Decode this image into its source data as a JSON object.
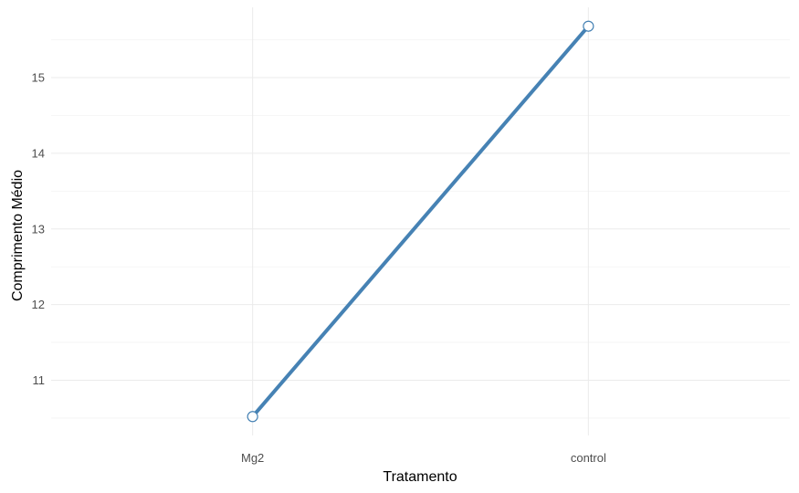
{
  "chart_data": {
    "type": "line",
    "title": "",
    "xlabel": "Tratamento",
    "ylabel": "Comprimento Médio",
    "categories": [
      "Mg2",
      "control"
    ],
    "series": [
      {
        "values": [
          10.52,
          15.68
        ]
      }
    ],
    "yticks": [
      "11",
      "12",
      "13",
      "14",
      "15"
    ],
    "ylim": [
      10.27,
      15.93
    ],
    "grid": true,
    "colors": {
      "line": "#4682b4",
      "marker_fill": "#ffffff",
      "marker_stroke": "#4682b4"
    }
  }
}
